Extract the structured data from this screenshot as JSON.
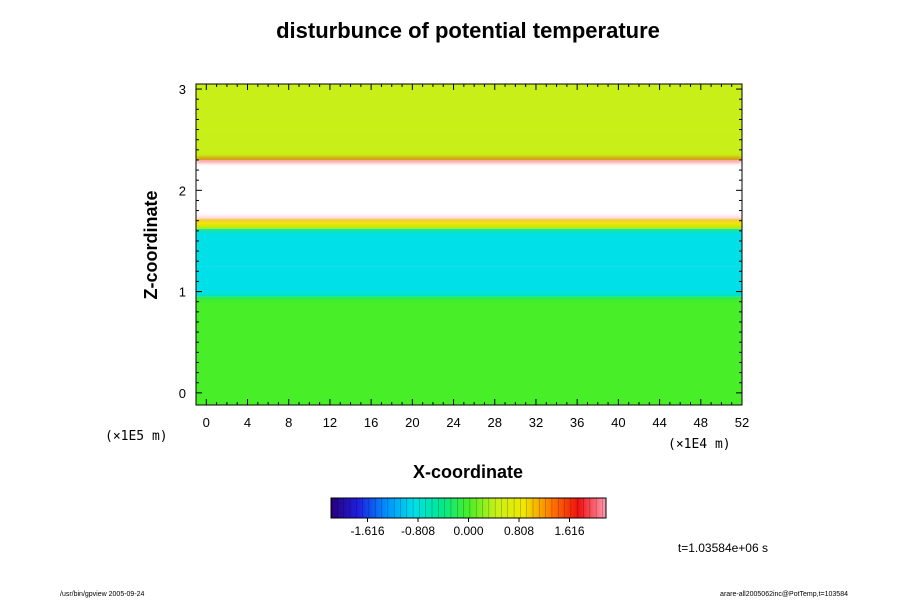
{
  "chart_data": {
    "type": "heatmap",
    "title": "disturbunce of potential temperature",
    "xlabel": "X-coordinate",
    "ylabel": "Z-coordinate",
    "x_ticks": [
      "0",
      "4",
      "8",
      "12",
      "16",
      "20",
      "24",
      "28",
      "32",
      "36",
      "40",
      "44",
      "48",
      "52"
    ],
    "y_ticks": [
      "0",
      "1",
      "2",
      "3"
    ],
    "x_unit": "(×1E4 m)",
    "y_unit": "(×1E5 m)",
    "xlim": [
      -1,
      52
    ],
    "ylim": [
      -0.12,
      3.05
    ],
    "colorbar": {
      "ticks": [
        "-1.616",
        "-0.808",
        "0.000",
        "0.808",
        "1.616"
      ],
      "range": [
        -2.2,
        2.2
      ],
      "colors": [
        "#26007a",
        "#1f1fe0",
        "#0090ff",
        "#00e0e8",
        "#00e890",
        "#48ee28",
        "#c8f018",
        "#f0e800",
        "#ff7a00",
        "#f01010",
        "#ff9cb4"
      ]
    },
    "layers": [
      {
        "z_from": -0.12,
        "z_to": 0.95,
        "value": 0.05
      },
      {
        "z_from": 0.95,
        "z_to": 1.25,
        "value": -0.7
      },
      {
        "z_from": 1.25,
        "z_to": 1.45,
        "value": -1.0
      },
      {
        "z_from": 1.45,
        "z_to": 1.62,
        "value": -0.8
      },
      {
        "z_from": 1.62,
        "z_to": 1.72,
        "value": 1.0
      },
      {
        "z_from": 1.72,
        "z_to": 2.3,
        "value": 3.0
      },
      {
        "z_from": 2.3,
        "z_to": 2.6,
        "value": 0.6
      },
      {
        "z_from": 2.6,
        "z_to": 3.05,
        "value": 0.4
      }
    ],
    "timestamp": "t=1.03584e+06 s"
  },
  "footer": {
    "left": "/usr/bin/gpview 2005-09-24",
    "right": "arare-all2005062inc@PotTemp,t=103584"
  }
}
